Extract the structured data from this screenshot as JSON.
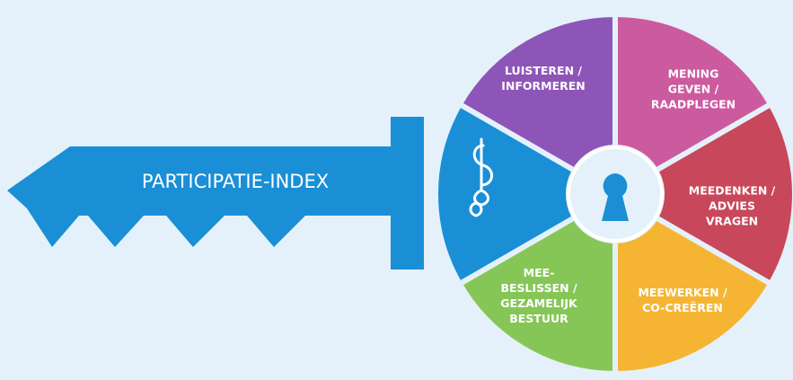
{
  "key": {
    "label": "PARTICIPATIE-INDEX"
  },
  "segments": [
    {
      "lines": [
        "LUISTEREN /",
        "INFORMEREN"
      ]
    },
    {
      "lines": [
        "MENING",
        "GEVEN /",
        "RAADPLEGEN"
      ]
    },
    {
      "lines": [
        "MEEDENKEN /",
        "ADVIES",
        "VRAGEN"
      ]
    },
    {
      "lines": [
        "MEEWERKEN /",
        "CO-CREËREN"
      ]
    },
    {
      "lines": [
        "MEE-",
        "BESLISSEN /",
        "GEZAMELIJK",
        "BESTUUR"
      ]
    }
  ]
}
